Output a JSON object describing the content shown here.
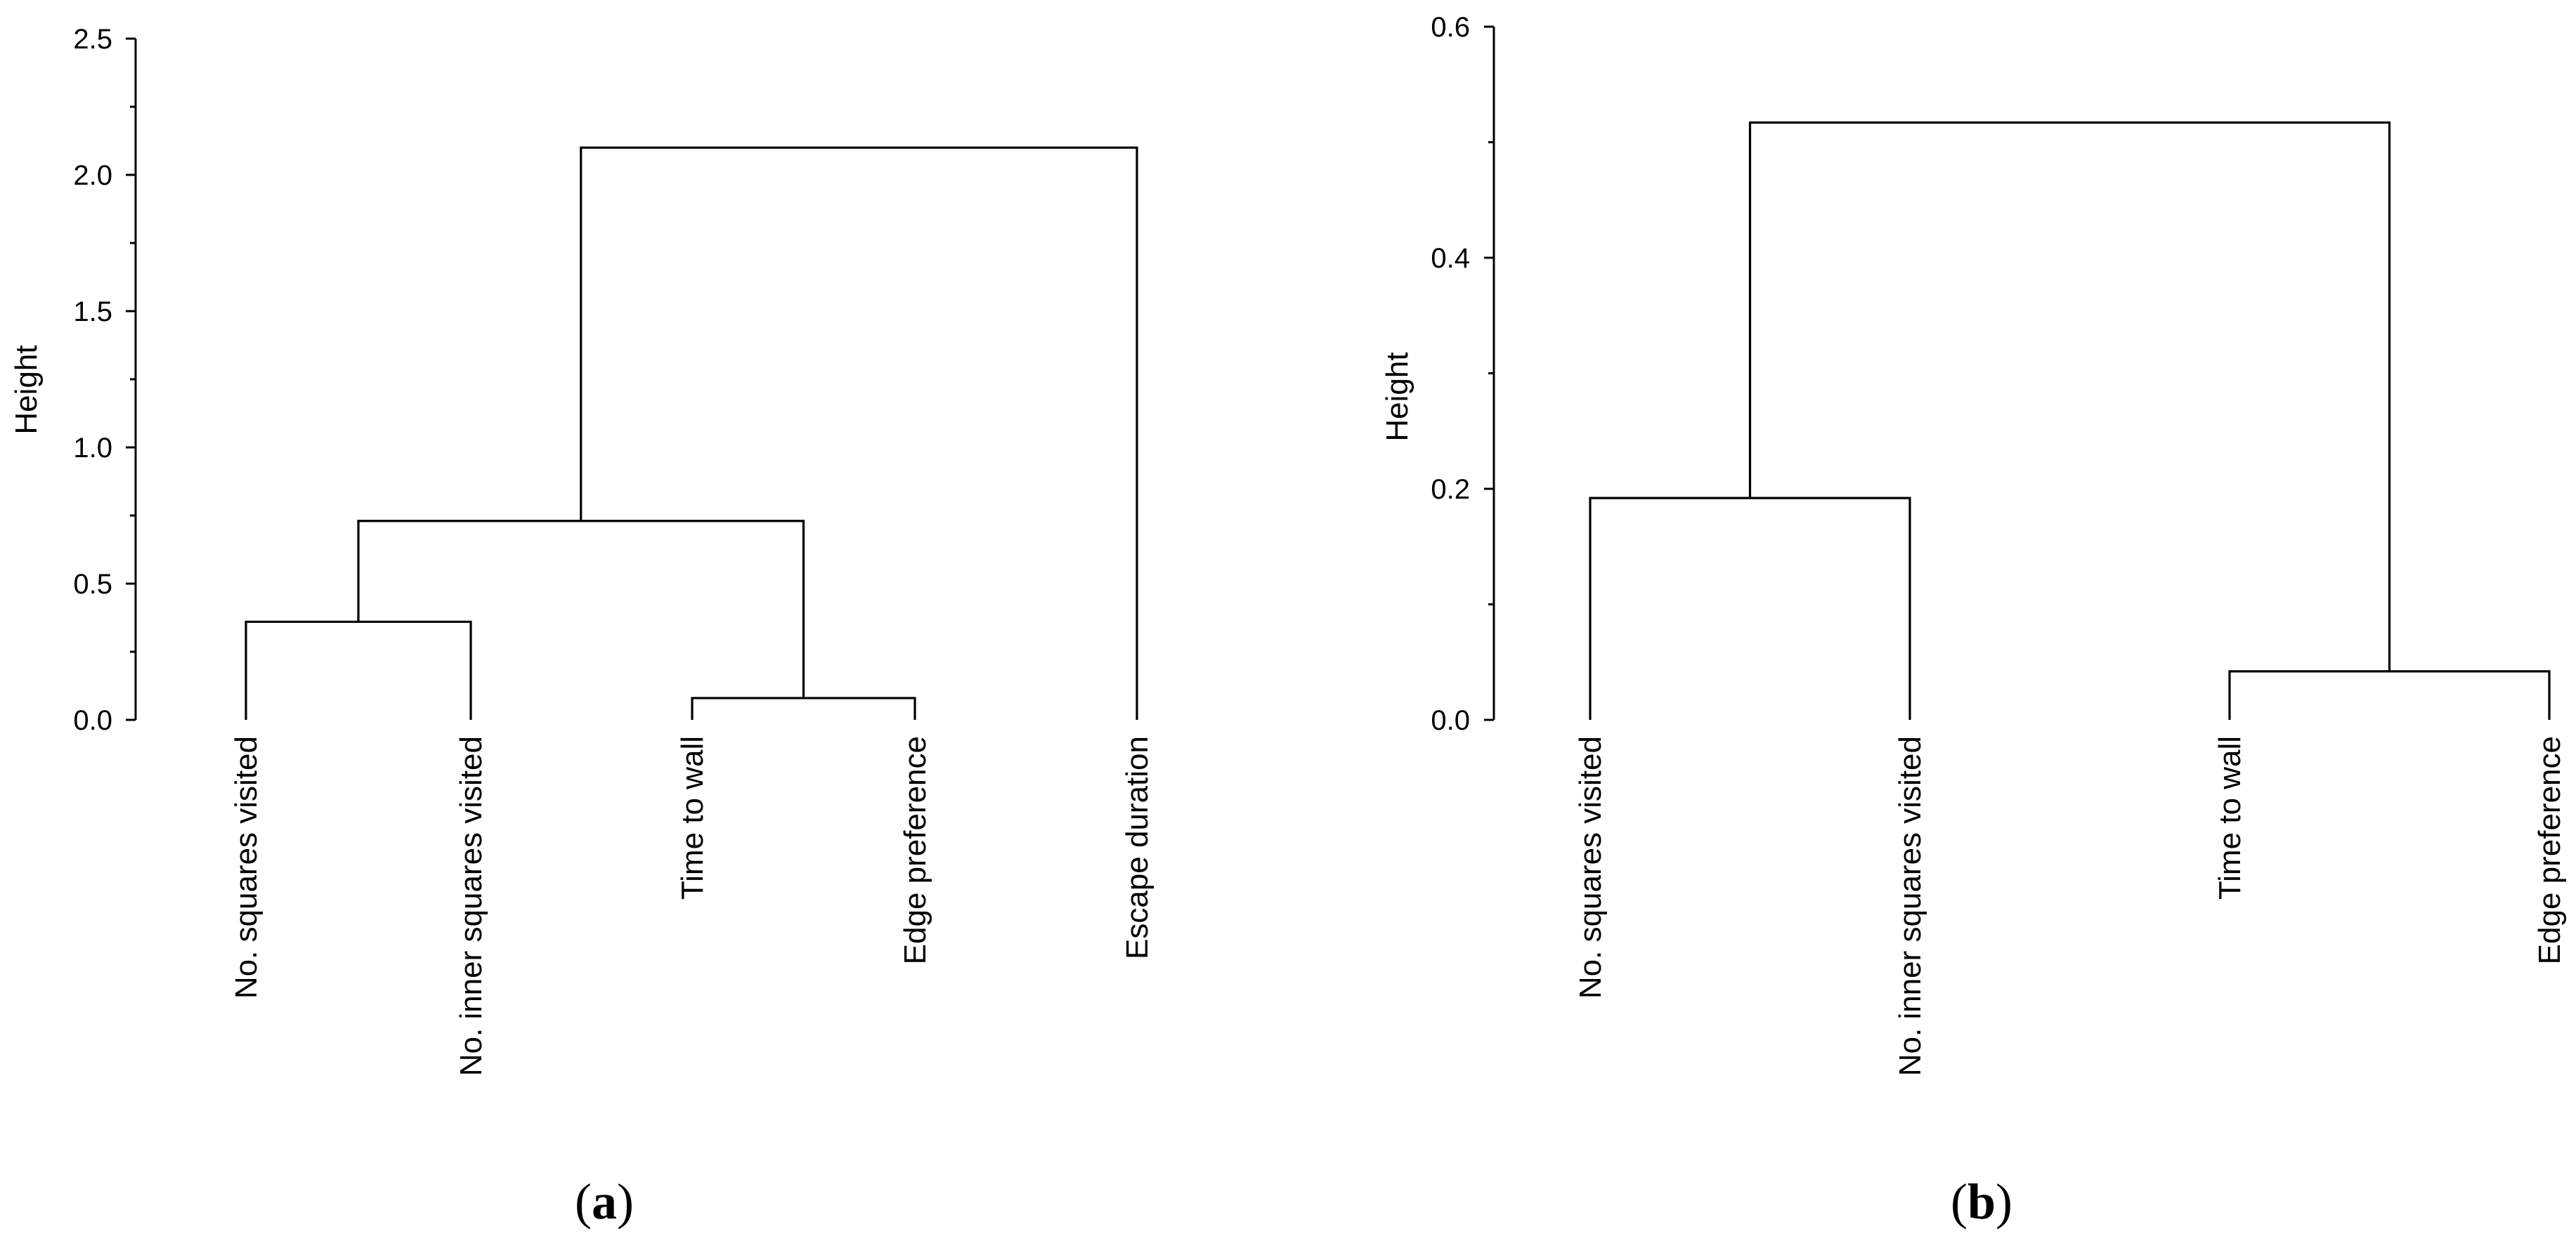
{
  "chart_data": [
    {
      "type": "dendrogram",
      "panel_label": "a",
      "ylabel": "Height",
      "ylim": [
        0,
        2.5
      ],
      "yticks": [
        "0.0",
        "0.5",
        "1.0",
        "1.5",
        "2.0",
        "2.5"
      ],
      "leaves": [
        "No. squares visited",
        "No. inner squares visited",
        "Time to wall",
        "Edge preference",
        "Escape duration"
      ],
      "merges": [
        {
          "children": [
            {
              "leaf": 2
            },
            {
              "leaf": 3
            }
          ],
          "height": 0.08
        },
        {
          "children": [
            {
              "leaf": 0
            },
            {
              "leaf": 1
            }
          ],
          "height": 0.36
        },
        {
          "children": [
            {
              "node": 1
            },
            {
              "node": 0
            }
          ],
          "height": 0.73
        },
        {
          "children": [
            {
              "node": 2
            },
            {
              "leaf": 4
            }
          ],
          "height": 2.1
        }
      ]
    },
    {
      "type": "dendrogram",
      "panel_label": "b",
      "ylabel": "Height",
      "ylim": [
        0,
        0.6
      ],
      "yticks": [
        "0.0",
        "0.2",
        "0.4",
        "0.6"
      ],
      "leaves": [
        "No. squares visited",
        "No. inner squares visited",
        "Time to wall",
        "Edge preference"
      ],
      "merges": [
        {
          "children": [
            {
              "leaf": 2
            },
            {
              "leaf": 3
            }
          ],
          "height": 0.042
        },
        {
          "children": [
            {
              "leaf": 0
            },
            {
              "leaf": 1
            }
          ],
          "height": 0.192
        },
        {
          "children": [
            {
              "node": 1
            },
            {
              "node": 0
            }
          ],
          "height": 0.517
        }
      ]
    }
  ]
}
